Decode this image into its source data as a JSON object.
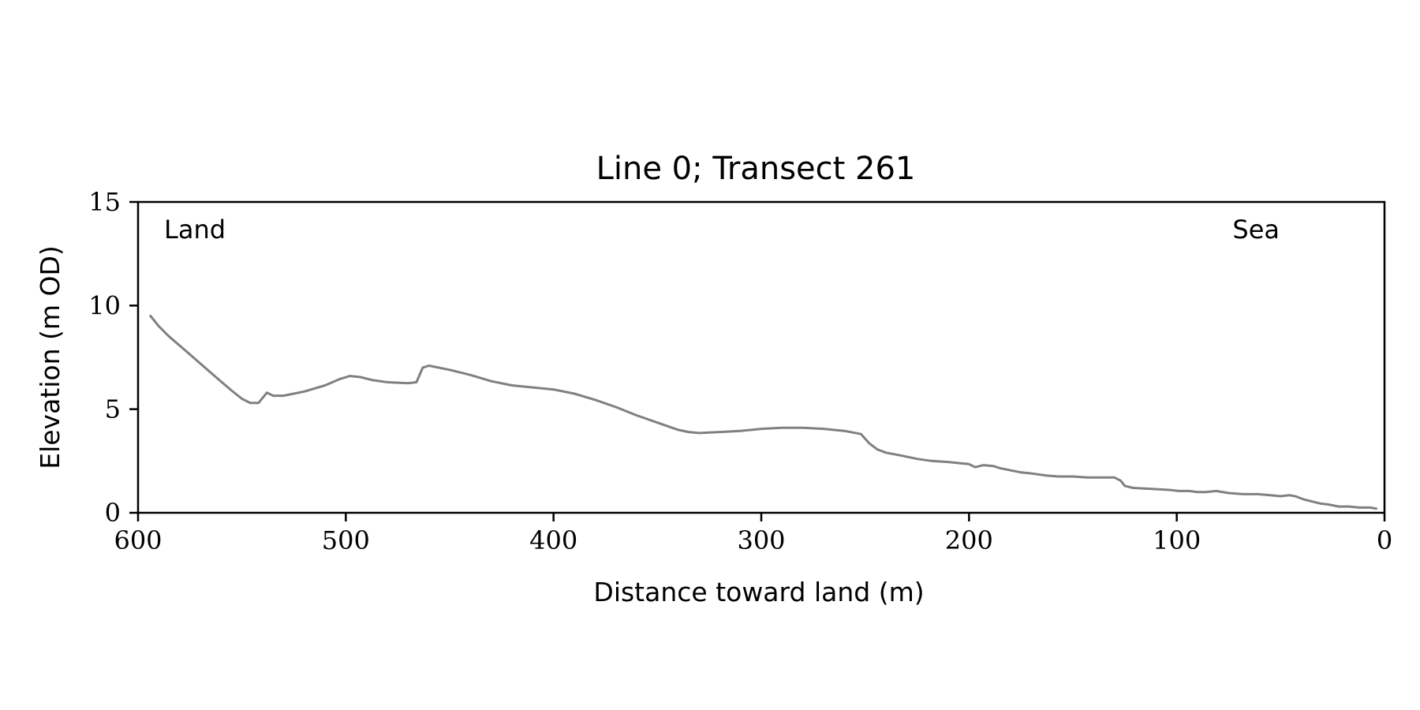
{
  "chart_data": {
    "type": "line",
    "title": "Line 0; Transect 261",
    "xlabel": "Distance toward land (m)",
    "ylabel": "Elevation (m OD)",
    "xlim": [
      600,
      0
    ],
    "ylim": [
      0,
      15
    ],
    "x_inverted": true,
    "grid": false,
    "x_ticks": [
      "600",
      "500",
      "400",
      "300",
      "200",
      "100",
      "0"
    ],
    "y_ticks": [
      "0",
      "5",
      "10",
      "15"
    ],
    "annotations": {
      "land": "Land",
      "sea": "Sea"
    },
    "line_color": "#808080",
    "series": [
      {
        "x": [
          594,
          590,
          585,
          578,
          570,
          562,
          555,
          550,
          546,
          542,
          538,
          535,
          530,
          520,
          510,
          503,
          498,
          493,
          487,
          480,
          470,
          466,
          463,
          460,
          450,
          440,
          430,
          420,
          410,
          400,
          390,
          380,
          370,
          360,
          350,
          340,
          335,
          330,
          320,
          310,
          300,
          290,
          280,
          270,
          260,
          252,
          248,
          244,
          240,
          232,
          225,
          218,
          210,
          205,
          200,
          197,
          193,
          188,
          185,
          180,
          175,
          170,
          163,
          157,
          150,
          143,
          136,
          130,
          127,
          125,
          121,
          112,
          103,
          99,
          94,
          90,
          86,
          81,
          75,
          68,
          61,
          55,
          50,
          46,
          43,
          39,
          35,
          31,
          27,
          22,
          17,
          12,
          7,
          4
        ],
        "y": [
          9.5,
          9.0,
          8.5,
          7.9,
          7.2,
          6.5,
          5.9,
          5.5,
          5.3,
          5.3,
          5.8,
          5.65,
          5.65,
          5.85,
          6.15,
          6.45,
          6.6,
          6.55,
          6.4,
          6.3,
          6.25,
          6.3,
          7.0,
          7.1,
          6.9,
          6.65,
          6.35,
          6.15,
          6.05,
          5.95,
          5.75,
          5.45,
          5.1,
          4.7,
          4.35,
          4.0,
          3.9,
          3.85,
          3.9,
          3.95,
          4.05,
          4.1,
          4.1,
          4.05,
          3.95,
          3.8,
          3.35,
          3.05,
          2.9,
          2.75,
          2.6,
          2.5,
          2.45,
          2.4,
          2.35,
          2.2,
          2.3,
          2.25,
          2.15,
          2.05,
          1.95,
          1.9,
          1.8,
          1.75,
          1.75,
          1.7,
          1.7,
          1.7,
          1.55,
          1.3,
          1.2,
          1.15,
          1.1,
          1.05,
          1.05,
          1.0,
          1.0,
          1.05,
          0.95,
          0.9,
          0.9,
          0.85,
          0.8,
          0.85,
          0.8,
          0.65,
          0.55,
          0.45,
          0.4,
          0.3,
          0.3,
          0.25,
          0.25,
          0.2
        ]
      }
    ]
  }
}
